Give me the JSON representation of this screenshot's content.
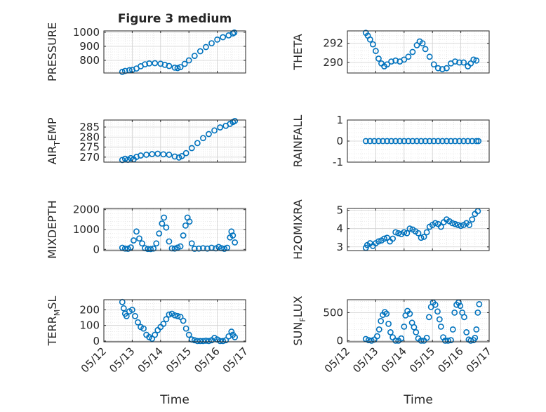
{
  "colors": {
    "marker": "#0072BD",
    "axis": "#262626",
    "grid": "#d9d9d9",
    "background": "#ffffff"
  },
  "chart_data": [
    {
      "type": "scatter",
      "id": "pressure",
      "title": "Figure 3 medium",
      "ylabel": "PRESSURE",
      "ylim": [
        710,
        1010
      ],
      "yticks": [
        800,
        900,
        1000
      ],
      "ytick_labels": [
        "800",
        "900",
        "1000"
      ],
      "xlim": [
        0,
        5
      ],
      "points": [
        [
          0.65,
          718
        ],
        [
          0.75,
          725
        ],
        [
          0.9,
          730
        ],
        [
          1.0,
          732
        ],
        [
          1.15,
          742
        ],
        [
          1.3,
          758
        ],
        [
          1.45,
          772
        ],
        [
          1.6,
          778
        ],
        [
          1.8,
          780
        ],
        [
          2.0,
          776
        ],
        [
          2.15,
          768
        ],
        [
          2.3,
          760
        ],
        [
          2.5,
          748
        ],
        [
          2.6,
          745
        ],
        [
          2.7,
          752
        ],
        [
          2.85,
          775
        ],
        [
          3.0,
          800
        ],
        [
          3.2,
          832
        ],
        [
          3.4,
          865
        ],
        [
          3.6,
          895
        ],
        [
          3.8,
          922
        ],
        [
          4.0,
          948
        ],
        [
          4.2,
          965
        ],
        [
          4.4,
          978
        ],
        [
          4.55,
          992
        ],
        [
          4.6,
          998
        ]
      ]
    },
    {
      "type": "scatter",
      "id": "theta",
      "ylabel": "THETA",
      "ylim": [
        288.9,
        293.3
      ],
      "yticks": [
        290,
        292
      ],
      "ytick_labels": [
        "290",
        "292"
      ],
      "xlim": [
        0,
        5
      ],
      "points": [
        [
          0.65,
          293.1
        ],
        [
          0.72,
          292.8
        ],
        [
          0.8,
          292.4
        ],
        [
          0.9,
          291.9
        ],
        [
          1.0,
          291.2
        ],
        [
          1.1,
          290.4
        ],
        [
          1.2,
          289.9
        ],
        [
          1.3,
          289.6
        ],
        [
          1.4,
          289.8
        ],
        [
          1.55,
          290.1
        ],
        [
          1.7,
          290.2
        ],
        [
          1.85,
          290.1
        ],
        [
          2.0,
          290.3
        ],
        [
          2.15,
          290.6
        ],
        [
          2.3,
          291.1
        ],
        [
          2.45,
          291.8
        ],
        [
          2.55,
          292.2
        ],
        [
          2.65,
          292.0
        ],
        [
          2.75,
          291.4
        ],
        [
          2.9,
          290.6
        ],
        [
          3.05,
          289.8
        ],
        [
          3.2,
          289.4
        ],
        [
          3.35,
          289.3
        ],
        [
          3.5,
          289.4
        ],
        [
          3.65,
          289.9
        ],
        [
          3.8,
          290.1
        ],
        [
          3.95,
          290.0
        ],
        [
          4.1,
          290.0
        ],
        [
          4.25,
          289.6
        ],
        [
          4.35,
          289.9
        ],
        [
          4.45,
          290.3
        ],
        [
          4.55,
          290.2
        ]
      ]
    },
    {
      "type": "scatter",
      "id": "air-temp",
      "ylabel": "AIR_TEMP",
      "ylabel_parts": [
        "AIR",
        "T",
        "EMP"
      ],
      "ylim": [
        267.5,
        288.5
      ],
      "yticks": [
        270,
        275,
        280,
        285
      ],
      "ytick_labels": [
        "270",
        "275",
        "280",
        "285"
      ],
      "xlim": [
        0,
        5
      ],
      "points": [
        [
          0.65,
          268.6
        ],
        [
          0.75,
          269.2
        ],
        [
          0.85,
          268.7
        ],
        [
          0.95,
          269.5
        ],
        [
          1.05,
          268.9
        ],
        [
          1.15,
          270.1
        ],
        [
          1.3,
          270.8
        ],
        [
          1.5,
          271.2
        ],
        [
          1.7,
          271.5
        ],
        [
          1.9,
          271.7
        ],
        [
          2.1,
          271.4
        ],
        [
          2.3,
          271.2
        ],
        [
          2.5,
          270.3
        ],
        [
          2.65,
          269.8
        ],
        [
          2.75,
          270.5
        ],
        [
          2.9,
          272.0
        ],
        [
          3.1,
          274.5
        ],
        [
          3.3,
          277.0
        ],
        [
          3.5,
          279.5
        ],
        [
          3.7,
          281.5
        ],
        [
          3.9,
          283.3
        ],
        [
          4.1,
          284.8
        ],
        [
          4.3,
          285.6
        ],
        [
          4.45,
          286.6
        ],
        [
          4.55,
          287.5
        ],
        [
          4.62,
          288.0
        ]
      ]
    },
    {
      "type": "scatter",
      "id": "rainfall",
      "ylabel": "RAINFALL",
      "ylim": [
        -1,
        1
      ],
      "yticks": [
        -1,
        0,
        1
      ],
      "ytick_labels": [
        "-1",
        "0",
        "1"
      ],
      "xlim": [
        0,
        5
      ],
      "points": [
        [
          0.65,
          0
        ],
        [
          0.8,
          0
        ],
        [
          0.95,
          0
        ],
        [
          1.1,
          0
        ],
        [
          1.25,
          0
        ],
        [
          1.4,
          0
        ],
        [
          1.55,
          0
        ],
        [
          1.7,
          0
        ],
        [
          1.85,
          0
        ],
        [
          2.0,
          0
        ],
        [
          2.15,
          0
        ],
        [
          2.3,
          0
        ],
        [
          2.45,
          0
        ],
        [
          2.6,
          0
        ],
        [
          2.75,
          0
        ],
        [
          2.9,
          0
        ],
        [
          3.05,
          0
        ],
        [
          3.2,
          0
        ],
        [
          3.35,
          0
        ],
        [
          3.5,
          0
        ],
        [
          3.65,
          0
        ],
        [
          3.8,
          0
        ],
        [
          3.95,
          0
        ],
        [
          4.1,
          0
        ],
        [
          4.25,
          0
        ],
        [
          4.4,
          0
        ],
        [
          4.55,
          0
        ],
        [
          4.62,
          0
        ]
      ]
    },
    {
      "type": "scatter",
      "id": "mixdepth",
      "ylabel": "MIXDEPTH",
      "ylim": [
        -60,
        2060
      ],
      "yticks": [
        0,
        1000,
        2000
      ],
      "ytick_labels": [
        "0",
        "1000",
        "2000"
      ],
      "xlim": [
        0,
        5
      ],
      "points": [
        [
          0.65,
          80
        ],
        [
          0.75,
          40
        ],
        [
          0.85,
          30
        ],
        [
          0.95,
          100
        ],
        [
          1.05,
          450
        ],
        [
          1.15,
          900
        ],
        [
          1.25,
          550
        ],
        [
          1.35,
          300
        ],
        [
          1.45,
          60
        ],
        [
          1.55,
          20
        ],
        [
          1.65,
          15
        ],
        [
          1.75,
          40
        ],
        [
          1.85,
          300
        ],
        [
          1.95,
          800
        ],
        [
          2.05,
          1300
        ],
        [
          2.12,
          1600
        ],
        [
          2.2,
          1100
        ],
        [
          2.3,
          400
        ],
        [
          2.4,
          50
        ],
        [
          2.5,
          40
        ],
        [
          2.6,
          90
        ],
        [
          2.7,
          150
        ],
        [
          2.8,
          700
        ],
        [
          2.88,
          1200
        ],
        [
          2.95,
          1600
        ],
        [
          3.02,
          1400
        ],
        [
          3.1,
          300
        ],
        [
          3.2,
          30
        ],
        [
          3.35,
          40
        ],
        [
          3.5,
          60
        ],
        [
          3.65,
          40
        ],
        [
          3.8,
          80
        ],
        [
          3.95,
          50
        ],
        [
          4.05,
          120
        ],
        [
          4.15,
          60
        ],
        [
          4.25,
          30
        ],
        [
          4.35,
          80
        ],
        [
          4.45,
          600
        ],
        [
          4.5,
          900
        ],
        [
          4.55,
          700
        ],
        [
          4.62,
          350
        ]
      ]
    },
    {
      "type": "scatter",
      "id": "h2omixra",
      "ylabel": "H2OMIXRA",
      "ylim": [
        2.8,
        5.1
      ],
      "yticks": [
        3,
        4,
        5
      ],
      "ytick_labels": [
        "3",
        "4",
        "5"
      ],
      "xlim": [
        0,
        5
      ],
      "points": [
        [
          0.65,
          2.95
        ],
        [
          0.7,
          3.1
        ],
        [
          0.8,
          3.2
        ],
        [
          0.9,
          3.05
        ],
        [
          1.0,
          3.2
        ],
        [
          1.1,
          3.3
        ],
        [
          1.2,
          3.35
        ],
        [
          1.3,
          3.45
        ],
        [
          1.4,
          3.5
        ],
        [
          1.5,
          3.3
        ],
        [
          1.6,
          3.45
        ],
        [
          1.7,
          3.8
        ],
        [
          1.8,
          3.75
        ],
        [
          1.9,
          3.7
        ],
        [
          2.0,
          3.8
        ],
        [
          2.1,
          3.75
        ],
        [
          2.2,
          4.0
        ],
        [
          2.3,
          3.95
        ],
        [
          2.4,
          3.85
        ],
        [
          2.5,
          3.75
        ],
        [
          2.6,
          3.5
        ],
        [
          2.7,
          3.55
        ],
        [
          2.8,
          3.8
        ],
        [
          2.9,
          4.1
        ],
        [
          3.0,
          4.2
        ],
        [
          3.1,
          4.3
        ],
        [
          3.2,
          4.25
        ],
        [
          3.3,
          4.1
        ],
        [
          3.4,
          4.35
        ],
        [
          3.5,
          4.5
        ],
        [
          3.6,
          4.4
        ],
        [
          3.7,
          4.3
        ],
        [
          3.8,
          4.25
        ],
        [
          3.9,
          4.2
        ],
        [
          4.0,
          4.15
        ],
        [
          4.1,
          4.2
        ],
        [
          4.2,
          4.3
        ],
        [
          4.3,
          4.2
        ],
        [
          4.4,
          4.5
        ],
        [
          4.5,
          4.8
        ],
        [
          4.6,
          4.95
        ]
      ]
    },
    {
      "type": "scatter",
      "id": "terr-msl",
      "ylabel": "TERR_MSL",
      "ylabel_parts": [
        "TERR",
        "M",
        "SL"
      ],
      "ylim": [
        -5,
        265
      ],
      "yticks": [
        0,
        100,
        200
      ],
      "ytick_labels": [
        "0",
        "100",
        "200"
      ],
      "xlim": [
        0,
        5
      ],
      "xticks": [
        0,
        1,
        2,
        3,
        4,
        5
      ],
      "xtick_labels": [
        "05/12",
        "05/13",
        "05/14",
        "05/15",
        "05/16",
        "05/17"
      ],
      "xlabel": "Time",
      "points": [
        [
          0.65,
          250
        ],
        [
          0.7,
          210
        ],
        [
          0.75,
          175
        ],
        [
          0.8,
          160
        ],
        [
          0.9,
          190
        ],
        [
          1.0,
          200
        ],
        [
          1.1,
          160
        ],
        [
          1.2,
          120
        ],
        [
          1.3,
          90
        ],
        [
          1.4,
          80
        ],
        [
          1.5,
          40
        ],
        [
          1.6,
          25
        ],
        [
          1.7,
          15
        ],
        [
          1.8,
          40
        ],
        [
          1.9,
          70
        ],
        [
          2.0,
          90
        ],
        [
          2.1,
          110
        ],
        [
          2.2,
          140
        ],
        [
          2.3,
          170
        ],
        [
          2.4,
          175
        ],
        [
          2.5,
          165
        ],
        [
          2.6,
          160
        ],
        [
          2.7,
          155
        ],
        [
          2.8,
          130
        ],
        [
          2.9,
          80
        ],
        [
          3.0,
          40
        ],
        [
          3.1,
          10
        ],
        [
          3.2,
          5
        ],
        [
          3.3,
          0
        ],
        [
          3.4,
          0
        ],
        [
          3.5,
          0
        ],
        [
          3.6,
          2
        ],
        [
          3.7,
          0
        ],
        [
          3.8,
          5
        ],
        [
          3.9,
          20
        ],
        [
          4.0,
          10
        ],
        [
          4.1,
          0
        ],
        [
          4.2,
          0
        ],
        [
          4.3,
          5
        ],
        [
          4.4,
          30
        ],
        [
          4.5,
          60
        ],
        [
          4.55,
          40
        ],
        [
          4.62,
          25
        ]
      ]
    },
    {
      "type": "scatter",
      "id": "sun-flux",
      "ylabel": "SUN_FLUX",
      "ylabel_parts": [
        "SUN",
        "F",
        "LUX"
      ],
      "ylim": [
        -20,
        730
      ],
      "yticks": [
        0,
        500
      ],
      "ytick_labels": [
        "0",
        "500"
      ],
      "xlim": [
        0,
        5
      ],
      "xticks": [
        0,
        1,
        2,
        3,
        4,
        5
      ],
      "xtick_labels": [
        "05/12",
        "05/13",
        "05/14",
        "05/15",
        "05/16",
        "05/17"
      ],
      "xlabel": "Time",
      "points": [
        [
          0.65,
          30
        ],
        [
          0.75,
          10
        ],
        [
          0.85,
          0
        ],
        [
          0.95,
          20
        ],
        [
          1.05,
          80
        ],
        [
          1.12,
          200
        ],
        [
          1.18,
          350
        ],
        [
          1.25,
          460
        ],
        [
          1.32,
          510
        ],
        [
          1.38,
          480
        ],
        [
          1.45,
          300
        ],
        [
          1.52,
          150
        ],
        [
          1.6,
          60
        ],
        [
          1.7,
          0
        ],
        [
          1.8,
          0
        ],
        [
          1.9,
          40
        ],
        [
          2.0,
          250
        ],
        [
          2.05,
          450
        ],
        [
          2.12,
          530
        ],
        [
          2.2,
          480
        ],
        [
          2.28,
          320
        ],
        [
          2.35,
          240
        ],
        [
          2.42,
          150
        ],
        [
          2.5,
          40
        ],
        [
          2.6,
          0
        ],
        [
          2.7,
          0
        ],
        [
          2.8,
          50
        ],
        [
          2.88,
          420
        ],
        [
          2.95,
          600
        ],
        [
          3.02,
          680
        ],
        [
          3.1,
          640
        ],
        [
          3.18,
          520
        ],
        [
          3.25,
          380
        ],
        [
          3.3,
          250
        ],
        [
          3.38,
          60
        ],
        [
          3.45,
          0
        ],
        [
          3.55,
          0
        ],
        [
          3.65,
          10
        ],
        [
          3.72,
          200
        ],
        [
          3.78,
          500
        ],
        [
          3.85,
          640
        ],
        [
          3.92,
          680
        ],
        [
          3.98,
          620
        ],
        [
          4.05,
          500
        ],
        [
          4.12,
          420
        ],
        [
          4.2,
          150
        ],
        [
          4.28,
          20
        ],
        [
          4.35,
          0
        ],
        [
          4.45,
          10
        ],
        [
          4.5,
          50
        ],
        [
          4.55,
          200
        ],
        [
          4.6,
          500
        ],
        [
          4.65,
          650
        ]
      ]
    }
  ]
}
